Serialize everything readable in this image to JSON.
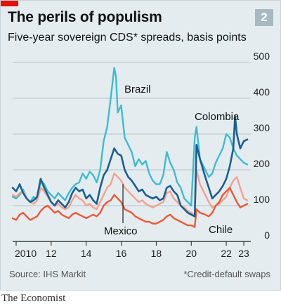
{
  "header": {
    "title": "The perils of populism",
    "subtitle": "Five-year sovereign CDS* spreads, basis points",
    "chart_number": "2"
  },
  "footer": {
    "source": "Source: IHS Markit",
    "footnote": "*Credit-default swaps",
    "brand": "The Economist"
  },
  "colors": {
    "Brazil": "#3ebbd1",
    "Colombia": "#1b5e92",
    "Mexico": "#f4a190",
    "Chile": "#eb5838",
    "accent_red": "#e3120b"
  },
  "chart_data": {
    "type": "line",
    "title": "The perils of populism",
    "subtitle": "Five-year sovereign CDS* spreads, basis points",
    "ylim": [
      0,
      500
    ],
    "xlim": [
      2009.8,
      2023.4
    ],
    "yticks": [
      0,
      100,
      200,
      300,
      400,
      500
    ],
    "xticks": [
      {
        "value": 2010,
        "label": "2010"
      },
      {
        "value": 2012,
        "label": "12"
      },
      {
        "value": 2014,
        "label": "14"
      },
      {
        "value": 2016,
        "label": "16"
      },
      {
        "value": 2018,
        "label": "18"
      },
      {
        "value": 2020,
        "label": "20"
      },
      {
        "value": 2022,
        "label": "22"
      },
      {
        "value": 2023,
        "label": "23"
      }
    ],
    "grid": true,
    "series": [
      {
        "name": "Brazil",
        "x": [
          2009.8,
          2010.0,
          2010.2,
          2010.4,
          2010.6,
          2010.8,
          2011.0,
          2011.2,
          2011.4,
          2011.6,
          2011.8,
          2012.0,
          2012.2,
          2012.4,
          2012.6,
          2012.8,
          2013.0,
          2013.2,
          2013.4,
          2013.6,
          2013.8,
          2014.0,
          2014.2,
          2014.4,
          2014.6,
          2014.8,
          2015.0,
          2015.2,
          2015.4,
          2015.6,
          2015.7,
          2015.8,
          2016.0,
          2016.2,
          2016.4,
          2016.6,
          2016.8,
          2017.0,
          2017.2,
          2017.4,
          2017.6,
          2017.8,
          2018.0,
          2018.2,
          2018.4,
          2018.6,
          2018.8,
          2019.0,
          2019.2,
          2019.4,
          2019.6,
          2019.8,
          2020.0,
          2020.2,
          2020.3,
          2020.5,
          2020.8,
          2021.0,
          2021.2,
          2021.4,
          2021.6,
          2021.8,
          2022.0,
          2022.2,
          2022.4,
          2022.6,
          2022.8,
          2023.0,
          2023.2
        ],
        "values": [
          125,
          120,
          130,
          145,
          120,
          110,
          125,
          115,
          170,
          160,
          140,
          130,
          120,
          135,
          125,
          115,
          135,
          150,
          160,
          165,
          190,
          175,
          195,
          185,
          165,
          200,
          280,
          320,
          400,
          485,
          460,
          360,
          380,
          290,
          270,
          250,
          210,
          230,
          215,
          225,
          190,
          170,
          160,
          160,
          185,
          250,
          220,
          200,
          165,
          150,
          120,
          110,
          100,
          290,
          320,
          230,
          200,
          180,
          190,
          220,
          240,
          260,
          300,
          290,
          260,
          240,
          230,
          220,
          215
        ]
      },
      {
        "name": "Colombia",
        "x": [
          2009.8,
          2010.0,
          2010.2,
          2010.4,
          2010.6,
          2010.8,
          2011.0,
          2011.2,
          2011.4,
          2011.6,
          2011.8,
          2012.0,
          2012.2,
          2012.4,
          2012.6,
          2012.8,
          2013.0,
          2013.2,
          2013.4,
          2013.6,
          2013.8,
          2014.0,
          2014.2,
          2014.4,
          2014.6,
          2014.8,
          2015.0,
          2015.2,
          2015.4,
          2015.6,
          2015.8,
          2016.0,
          2016.2,
          2016.4,
          2016.6,
          2016.8,
          2017.0,
          2017.2,
          2017.4,
          2017.6,
          2017.8,
          2018.0,
          2018.2,
          2018.4,
          2018.6,
          2018.8,
          2019.0,
          2019.2,
          2019.4,
          2019.6,
          2019.8,
          2020.0,
          2020.2,
          2020.3,
          2020.5,
          2020.8,
          2021.0,
          2021.2,
          2021.4,
          2021.6,
          2021.8,
          2022.0,
          2022.2,
          2022.4,
          2022.5,
          2022.6,
          2022.8,
          2023.0,
          2023.2
        ],
        "values": [
          150,
          140,
          160,
          135,
          120,
          110,
          115,
          125,
          175,
          150,
          130,
          110,
          100,
          115,
          105,
          95,
          110,
          135,
          150,
          140,
          145,
          120,
          130,
          115,
          105,
          150,
          185,
          200,
          230,
          260,
          245,
          240,
          200,
          180,
          170,
          155,
          140,
          145,
          130,
          125,
          120,
          125,
          115,
          120,
          150,
          155,
          140,
          130,
          100,
          90,
          80,
          75,
          70,
          270,
          230,
          180,
          150,
          120,
          130,
          140,
          155,
          175,
          210,
          260,
          350,
          300,
          260,
          280,
          285
        ]
      },
      {
        "name": "Mexico",
        "x": [
          2009.8,
          2010.0,
          2010.2,
          2010.4,
          2010.6,
          2010.8,
          2011.0,
          2011.2,
          2011.4,
          2011.6,
          2011.8,
          2012.0,
          2012.2,
          2012.4,
          2012.6,
          2012.8,
          2013.0,
          2013.2,
          2013.4,
          2013.6,
          2013.8,
          2014.0,
          2014.2,
          2014.4,
          2014.6,
          2014.8,
          2015.0,
          2015.2,
          2015.4,
          2015.6,
          2015.8,
          2016.0,
          2016.2,
          2016.4,
          2016.6,
          2016.8,
          2017.0,
          2017.2,
          2017.4,
          2017.6,
          2017.8,
          2018.0,
          2018.2,
          2018.4,
          2018.6,
          2018.8,
          2019.0,
          2019.2,
          2019.4,
          2019.6,
          2019.8,
          2020.0,
          2020.2,
          2020.3,
          2020.5,
          2020.8,
          2021.0,
          2021.2,
          2021.4,
          2021.6,
          2021.8,
          2022.0,
          2022.2,
          2022.4,
          2022.6,
          2022.8,
          2023.0,
          2023.2
        ],
        "values": [
          130,
          125,
          135,
          140,
          120,
          110,
          105,
          115,
          150,
          140,
          125,
          110,
          100,
          105,
          95,
          90,
          95,
          115,
          130,
          120,
          115,
          100,
          105,
          95,
          90,
          110,
          130,
          150,
          160,
          190,
          180,
          170,
          150,
          140,
          130,
          120,
          110,
          115,
          105,
          100,
          95,
          100,
          105,
          110,
          135,
          140,
          120,
          110,
          100,
          95,
          85,
          80,
          75,
          200,
          160,
          130,
          110,
          95,
          100,
          105,
          115,
          125,
          150,
          170,
          180,
          150,
          120,
          115
        ]
      },
      {
        "name": "Chile",
        "x": [
          2009.8,
          2010.0,
          2010.2,
          2010.4,
          2010.6,
          2010.8,
          2011.0,
          2011.2,
          2011.4,
          2011.6,
          2011.8,
          2012.0,
          2012.2,
          2012.4,
          2012.6,
          2012.8,
          2013.0,
          2013.2,
          2013.4,
          2013.6,
          2013.8,
          2014.0,
          2014.2,
          2014.4,
          2014.6,
          2014.8,
          2015.0,
          2015.2,
          2015.4,
          2015.6,
          2015.8,
          2016.0,
          2016.2,
          2016.4,
          2016.6,
          2016.8,
          2017.0,
          2017.2,
          2017.4,
          2017.6,
          2017.8,
          2018.0,
          2018.2,
          2018.4,
          2018.6,
          2018.8,
          2019.0,
          2019.2,
          2019.4,
          2019.6,
          2019.8,
          2020.0,
          2020.2,
          2020.3,
          2020.5,
          2020.8,
          2021.0,
          2021.2,
          2021.4,
          2021.6,
          2021.8,
          2022.0,
          2022.2,
          2022.4,
          2022.6,
          2022.8,
          2023.0,
          2023.2
        ],
        "values": [
          65,
          60,
          75,
          80,
          70,
          60,
          65,
          70,
          85,
          95,
          100,
          90,
          80,
          85,
          75,
          70,
          65,
          75,
          80,
          75,
          70,
          65,
          70,
          75,
          70,
          80,
          100,
          110,
          115,
          130,
          120,
          110,
          90,
          85,
          80,
          70,
          65,
          60,
          55,
          55,
          50,
          50,
          55,
          60,
          70,
          75,
          65,
          60,
          55,
          50,
          45,
          45,
          40,
          90,
          80,
          75,
          70,
          80,
          100,
          110,
          130,
          140,
          150,
          130,
          110,
          95,
          100,
          105
        ]
      }
    ],
    "labels": [
      {
        "text": "Brazil"
      },
      {
        "text": "Colombia"
      },
      {
        "text": "Mexico"
      },
      {
        "text": "Chile"
      }
    ]
  }
}
